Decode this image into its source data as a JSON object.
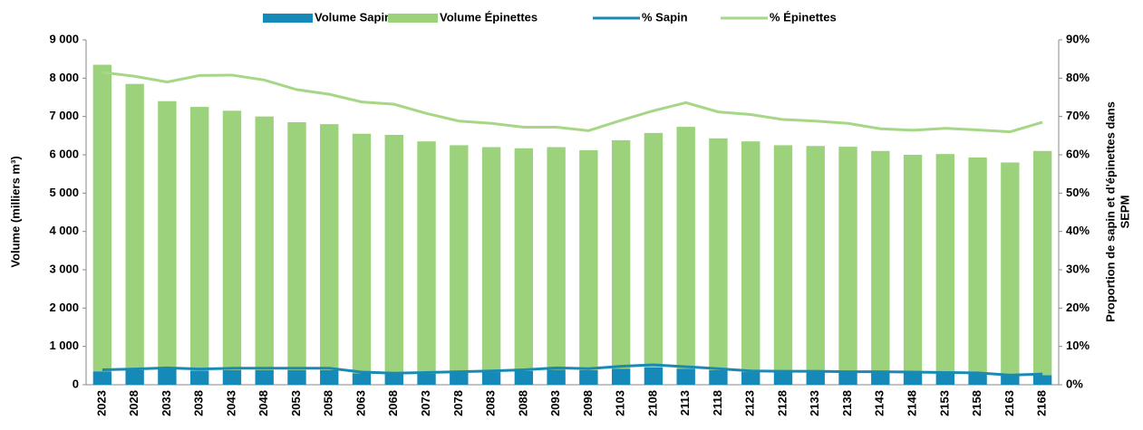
{
  "chart_data": {
    "type": "bar",
    "categories": [
      "2023",
      "2028",
      "2033",
      "2038",
      "2043",
      "2048",
      "2053",
      "2058",
      "2063",
      "2068",
      "2073",
      "2078",
      "2083",
      "2088",
      "2093",
      "2098",
      "2103",
      "2108",
      "2113",
      "2118",
      "2123",
      "2128",
      "2133",
      "2138",
      "2143",
      "2148",
      "2153",
      "2158",
      "2163",
      "2168"
    ],
    "series": [
      {
        "name": "Volume Sapin",
        "color": "#1589b8",
        "kind": "bar",
        "values": [
          350,
          380,
          410,
          370,
          380,
          380,
          380,
          380,
          300,
          280,
          290,
          310,
          330,
          360,
          390,
          380,
          420,
          450,
          420,
          380,
          330,
          320,
          320,
          320,
          320,
          320,
          300,
          300,
          250,
          250
        ]
      },
      {
        "name": "Volume Épinettes",
        "color": "#9dd27c",
        "kind": "bar",
        "values": [
          8000,
          7470,
          6990,
          6880,
          6770,
          6620,
          6470,
          6420,
          6250,
          6240,
          6060,
          5940,
          5870,
          5810,
          5810,
          5740,
          5960,
          6120,
          6310,
          6050,
          6020,
          5930,
          5910,
          5890,
          5780,
          5680,
          5720,
          5630,
          5550,
          5850
        ]
      },
      {
        "name": "% Sapin",
        "color": "#1b8ab3",
        "kind": "line",
        "axis": "y2",
        "values": [
          3.9,
          4.1,
          4.4,
          4.1,
          4.3,
          4.3,
          4.3,
          4.3,
          3.3,
          3.0,
          3.2,
          3.4,
          3.6,
          3.9,
          4.4,
          4.2,
          4.8,
          5.2,
          4.7,
          4.2,
          3.6,
          3.5,
          3.5,
          3.4,
          3.4,
          3.3,
          3.2,
          3.1,
          2.5,
          2.8
        ]
      },
      {
        "name": "% Épinettes",
        "color": "#a6d786",
        "kind": "line",
        "axis": "y2",
        "values": [
          81.5,
          80.5,
          79,
          80.7,
          80.8,
          79.5,
          77,
          75.8,
          73.8,
          73.2,
          70.8,
          68.8,
          68.2,
          67.2,
          67.2,
          66.3,
          69,
          71.5,
          73.6,
          71.2,
          70.5,
          69.2,
          68.8,
          68.2,
          66.8,
          66.4,
          66.9,
          66.5,
          66,
          68.5
        ]
      }
    ],
    "stacked": true,
    "y_label": "Volume  (milliers m³)",
    "y2_label": [
      "Proportion de sapin et d'épinettes dans",
      "SEPM"
    ],
    "ylim": [
      0,
      9000
    ],
    "yticks": [
      0,
      {
        "value": 1000,
        "label": "1 000"
      },
      {
        "value": 2000,
        "label": "2 000"
      },
      {
        "value": 3000,
        "label": "3 000"
      },
      {
        "value": 4000,
        "label": "4 000"
      },
      {
        "value": 5000,
        "label": "5 000"
      },
      {
        "value": 6000,
        "label": "6 000"
      },
      {
        "value": 7000,
        "label": "7 000"
      },
      {
        "value": 8000,
        "label": "8 000"
      },
      {
        "value": 9000,
        "label": "9 000"
      }
    ],
    "y2lim": [
      0,
      90
    ],
    "y2ticks": [
      {
        "value": 0,
        "label": "0%"
      },
      {
        "value": 10,
        "label": "10%"
      },
      {
        "value": 20,
        "label": "20%"
      },
      {
        "value": 30,
        "label": "30%"
      },
      {
        "value": 40,
        "label": "40%"
      },
      {
        "value": 50,
        "label": "50%"
      },
      {
        "value": 60,
        "label": "60%"
      },
      {
        "value": 70,
        "label": "70%"
      },
      {
        "value": 80,
        "label": "80%"
      },
      {
        "value": 90,
        "label": "90%"
      }
    ],
    "legend": "top"
  }
}
